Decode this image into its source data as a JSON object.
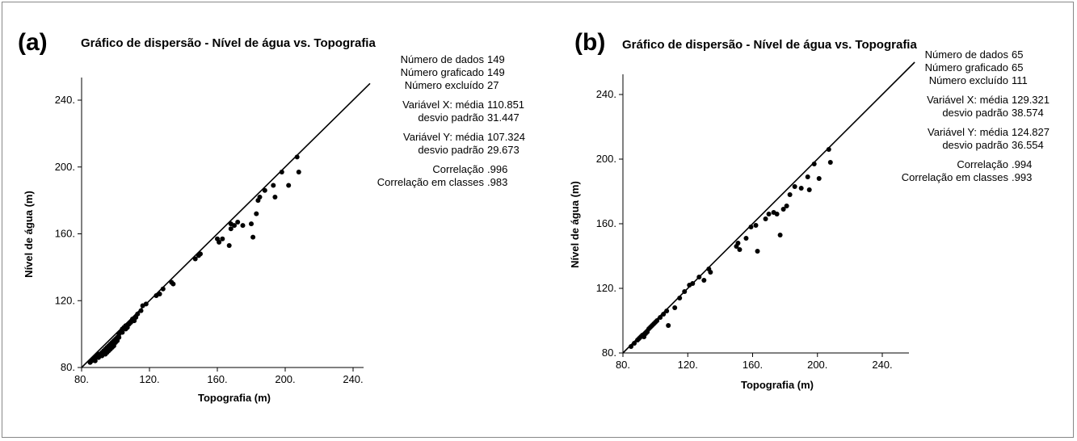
{
  "chart_data": [
    {
      "type": "scatter",
      "panel_label": "(a)",
      "title": "Gráfico de dispersão - Nível de água vs. Topografia",
      "xlabel": "Topografia (m)",
      "ylabel": "Nível de água (m)",
      "xlim": [
        80,
        250
      ],
      "ylim": [
        80,
        250
      ],
      "x_ticks": [
        "80.",
        "120.",
        "160.",
        "200.",
        "240."
      ],
      "y_ticks": [
        "80.",
        "120.",
        "160.",
        "200.",
        "240."
      ],
      "reference_line": "y = x",
      "stats": [
        {
          "label": "Número de dados",
          "value": "149"
        },
        {
          "label": "Número graficado",
          "value": "149"
        },
        {
          "label": "Número excluído",
          "value": "27"
        },
        {
          "label": "Variável X: média",
          "value": "110.851"
        },
        {
          "label": "desvio padrão",
          "value": "31.447"
        },
        {
          "label": "Variável Y: média",
          "value": "107.324"
        },
        {
          "label": "desvio padrão",
          "value": "29.673"
        },
        {
          "label": "Correlação",
          "value": ".996"
        },
        {
          "label": "Correlação em classes",
          "value": ".983"
        }
      ],
      "points": [
        [
          85,
          83
        ],
        [
          86,
          84
        ],
        [
          87,
          85
        ],
        [
          88,
          86
        ],
        [
          88,
          84
        ],
        [
          89,
          87
        ],
        [
          90,
          88
        ],
        [
          90,
          86
        ],
        [
          91,
          88
        ],
        [
          92,
          89
        ],
        [
          92,
          87
        ],
        [
          93,
          90
        ],
        [
          94,
          91
        ],
        [
          94,
          88
        ],
        [
          95,
          92
        ],
        [
          95,
          89
        ],
        [
          96,
          93
        ],
        [
          96,
          90
        ],
        [
          97,
          94
        ],
        [
          97,
          91
        ],
        [
          98,
          95
        ],
        [
          98,
          92
        ],
        [
          99,
          96
        ],
        [
          99,
          93
        ],
        [
          100,
          97
        ],
        [
          100,
          95
        ],
        [
          101,
          98
        ],
        [
          101,
          96
        ],
        [
          102,
          100
        ],
        [
          102,
          98
        ],
        [
          103,
          101
        ],
        [
          104,
          103
        ],
        [
          104,
          101
        ],
        [
          105,
          104
        ],
        [
          106,
          105
        ],
        [
          106,
          103
        ],
        [
          107,
          104
        ],
        [
          108,
          106
        ],
        [
          109,
          107
        ],
        [
          110,
          109
        ],
        [
          111,
          108
        ],
        [
          112,
          110
        ],
        [
          113,
          112
        ],
        [
          115,
          114
        ],
        [
          116,
          117
        ],
        [
          118,
          118
        ],
        [
          124,
          123
        ],
        [
          126,
          124
        ],
        [
          128,
          127
        ],
        [
          133,
          131
        ],
        [
          134,
          130
        ],
        [
          147,
          145
        ],
        [
          149,
          147
        ],
        [
          150,
          148
        ],
        [
          160,
          157
        ],
        [
          161,
          155
        ],
        [
          163,
          157
        ],
        [
          167,
          153
        ],
        [
          168,
          163
        ],
        [
          168,
          166
        ],
        [
          170,
          165
        ],
        [
          172,
          167
        ],
        [
          175,
          165
        ],
        [
          180,
          166
        ],
        [
          181,
          158
        ],
        [
          183,
          172
        ],
        [
          184,
          180
        ],
        [
          185,
          182
        ],
        [
          188,
          186
        ],
        [
          193,
          189
        ],
        [
          194,
          182
        ],
        [
          198,
          197
        ],
        [
          202,
          189
        ],
        [
          207,
          206
        ],
        [
          208,
          197
        ]
      ]
    },
    {
      "type": "scatter",
      "panel_label": "(b)",
      "title": "Gráfico de dispersão - Nível de água vs. Topografia",
      "xlabel": "Topografia (m)",
      "ylabel": "Nível de água (m)",
      "xlim": [
        80,
        260
      ],
      "ylim": [
        80,
        260
      ],
      "x_ticks": [
        "80.",
        "120.",
        "160.",
        "200.",
        "240."
      ],
      "y_ticks": [
        "80.",
        "120.",
        "160.",
        "200.",
        "240."
      ],
      "reference_line": "y = x",
      "stats": [
        {
          "label": "Número de dados",
          "value": "65"
        },
        {
          "label": "Número graficado",
          "value": "65"
        },
        {
          "label": "Número excluído",
          "value": "111"
        },
        {
          "label": "Variável X: média",
          "value": "129.321"
        },
        {
          "label": "desvio padrão",
          "value": "38.574"
        },
        {
          "label": "Variável Y: média",
          "value": "124.827"
        },
        {
          "label": "desvio padrão",
          "value": "36.554"
        },
        {
          "label": "Correlação",
          "value": ".994"
        },
        {
          "label": "Correlação em classes",
          "value": ".993"
        }
      ],
      "points": [
        [
          85,
          84
        ],
        [
          87,
          86
        ],
        [
          89,
          88
        ],
        [
          90,
          89
        ],
        [
          91,
          90
        ],
        [
          92,
          91
        ],
        [
          93,
          90
        ],
        [
          94,
          92
        ],
        [
          95,
          93
        ],
        [
          96,
          95
        ],
        [
          97,
          96
        ],
        [
          98,
          97
        ],
        [
          99,
          98
        ],
        [
          100,
          99
        ],
        [
          101,
          100
        ],
        [
          103,
          102
        ],
        [
          105,
          104
        ],
        [
          107,
          106
        ],
        [
          108,
          97
        ],
        [
          112,
          108
        ],
        [
          115,
          114
        ],
        [
          118,
          118
        ],
        [
          121,
          122
        ],
        [
          123,
          123
        ],
        [
          127,
          127
        ],
        [
          130,
          125
        ],
        [
          133,
          132
        ],
        [
          134,
          130
        ],
        [
          150,
          146
        ],
        [
          151,
          148
        ],
        [
          152,
          144
        ],
        [
          156,
          151
        ],
        [
          159,
          158
        ],
        [
          162,
          159
        ],
        [
          163,
          143
        ],
        [
          168,
          163
        ],
        [
          170,
          166
        ],
        [
          173,
          167
        ],
        [
          175,
          166
        ],
        [
          177,
          153
        ],
        [
          179,
          169
        ],
        [
          181,
          171
        ],
        [
          183,
          178
        ],
        [
          186,
          183
        ],
        [
          190,
          182
        ],
        [
          194,
          189
        ],
        [
          195,
          181
        ],
        [
          198,
          197
        ],
        [
          201,
          188
        ],
        [
          207,
          206
        ],
        [
          208,
          198
        ]
      ]
    }
  ]
}
